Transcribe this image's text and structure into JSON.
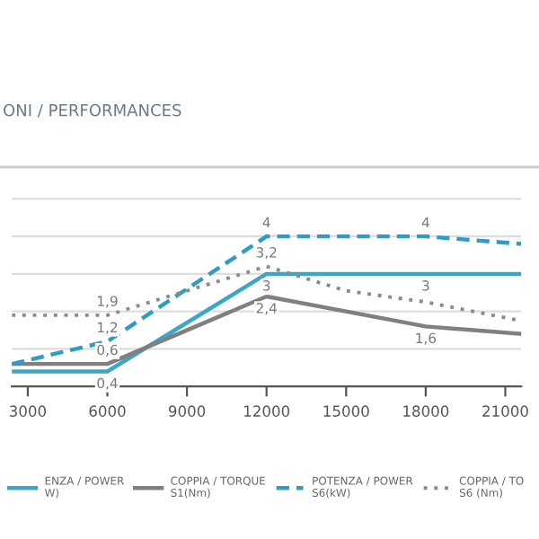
{
  "chart_data": {
    "type": "line",
    "title": "ONI / PERFORMANCES",
    "x": [
      2400,
      6000,
      12000,
      18000,
      21600
    ],
    "series": [
      {
        "name": "ENZA / POWER\nW)",
        "color": "#3aa6c8",
        "line_style": "solid",
        "values": [
          0.4,
          0.4,
          3,
          3,
          3
        ],
        "value_labels": [
          null,
          "0,4",
          "3",
          "3",
          null
        ]
      },
      {
        "name": "COPPIA / TORQUE\nS1(Nm)",
        "color": "#808080",
        "line_style": "solid",
        "values": [
          0.6,
          0.6,
          2.4,
          1.6,
          1.4
        ],
        "value_labels": [
          null,
          "0,6",
          "2,4",
          "1,6",
          null
        ]
      },
      {
        "name": "POTENZA / POWER\nS6(kW)",
        "color": "#2e9cc4",
        "line_style": "dashed",
        "values": [
          0.6,
          1.2,
          4,
          4,
          3.8
        ],
        "value_labels": [
          null,
          "1,2",
          "4",
          "4",
          null
        ]
      },
      {
        "name": "COPPIA / TO\nS6 (Nm)",
        "color": "#8a8a8a",
        "line_style": "dotted",
        "x": [
          2400,
          6000,
          12000,
          15000,
          18000,
          21600
        ],
        "values": [
          1.9,
          1.9,
          3.2,
          2.55,
          2.25,
          1.75
        ],
        "value_labels": [
          null,
          "1,9",
          "3,2",
          null,
          null,
          null
        ]
      }
    ],
    "xlim": [
      2400,
      21600
    ],
    "xticks": [
      3000,
      6000,
      9000,
      12000,
      15000,
      18000,
      21000
    ],
    "ylim": [
      0,
      5.1
    ],
    "yticks": [
      {
        "value": 0,
        "label": null
      },
      {
        "value": 1,
        "label": null
      },
      {
        "value": 2,
        "label": null
      },
      {
        "value": 3,
        "label": null
      },
      {
        "value": 4,
        "label": null
      },
      {
        "value": 5,
        "label": null
      }
    ],
    "tick_labels": "x",
    "grid": "y",
    "legend": "bottom"
  }
}
